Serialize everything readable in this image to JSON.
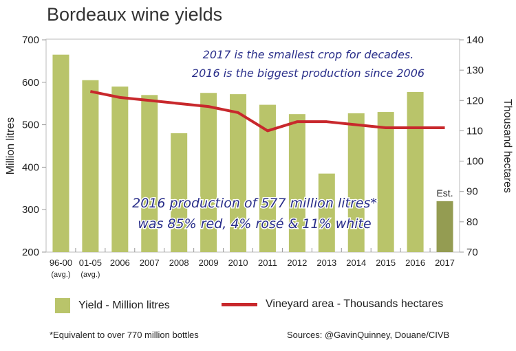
{
  "chart_data": {
    "type": "bar+line",
    "title": "Bordeaux wine yields",
    "ylabel": "Million litres",
    "y2label": "Thousand hectares",
    "ylim": [
      200,
      700
    ],
    "y2lim": [
      70,
      140
    ],
    "yticks": [
      200,
      300,
      400,
      500,
      600,
      700
    ],
    "y2ticks": [
      70,
      80,
      90,
      100,
      110,
      120,
      130,
      140
    ],
    "categories": [
      "96-00",
      "01-05",
      "2006",
      "2007",
      "2008",
      "2009",
      "2010",
      "2011",
      "2012",
      "2013",
      "2014",
      "2015",
      "2016",
      "2017"
    ],
    "sublabels": [
      "(avg.)",
      "(avg.)",
      "",
      "",
      "",
      "",
      "",
      "",
      "",
      "",
      "",
      "",
      "",
      ""
    ],
    "series": [
      {
        "name": "Yield - Million litres",
        "type": "bar",
        "axis": "left",
        "color": "#b9c46a",
        "estimate_color": "#949c52",
        "values": [
          665,
          605,
          590,
          570,
          480,
          575,
          572,
          547,
          525,
          385,
          527,
          530,
          577,
          320
        ]
      },
      {
        "name": "Vineyard area - Thousands hectares",
        "type": "line",
        "axis": "right",
        "color": "#c8282c",
        "values": [
          null,
          123,
          121,
          120,
          119,
          118,
          116,
          110,
          113,
          113,
          112,
          111,
          111,
          111
        ]
      }
    ],
    "estimate_label": "Est.",
    "annotations": [
      "2017 is the smallest crop for decades.",
      "2016 is the biggest production since 2006",
      "2016 production of 577 million litres*",
      "was 85% red, 4% rosé & 11% white"
    ],
    "legend_position": "bottom"
  },
  "footnote": "*Equivalent to over 770 million bottles",
  "sources": "Sources: @GavinQuinney, Douane/CIVB"
}
